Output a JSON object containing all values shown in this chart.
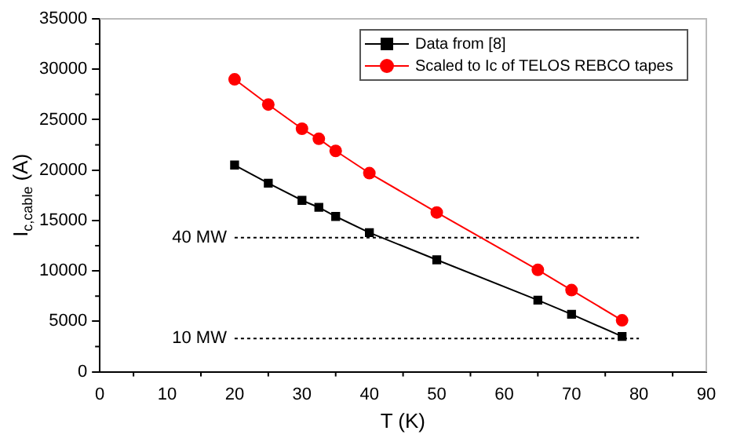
{
  "chart_data": {
    "type": "line",
    "xlabel": "T (K)",
    "ylabel": "I$_{c,cable}$ (A)",
    "xlim": [
      0,
      90
    ],
    "xticks": [
      0,
      10,
      20,
      30,
      40,
      50,
      60,
      70,
      80,
      90
    ],
    "ylim": [
      0,
      35000
    ],
    "yticks": [
      0,
      5000,
      10000,
      15000,
      20000,
      25000,
      30000,
      35000
    ],
    "grid": false,
    "legend": "top right",
    "series": [
      {
        "name": "Data from [8]",
        "color": "#000000",
        "marker": "square",
        "x": [
          20,
          25,
          30,
          32.5,
          35,
          40,
          50,
          65,
          70,
          77.5
        ],
        "values": [
          20500,
          18700,
          17000,
          16300,
          15400,
          13800,
          11100,
          7100,
          5700,
          3500
        ]
      },
      {
        "name": "Scaled to Ic of TELOS REBCO tapes",
        "color": "#ff0000",
        "marker": "circle",
        "x": [
          20,
          25,
          30,
          32.5,
          35,
          40,
          50,
          65,
          70,
          77.5
        ],
        "values": [
          29000,
          26500,
          24100,
          23100,
          21900,
          19700,
          15800,
          10100,
          8100,
          5100
        ]
      },
      {
        "color": "#000000",
        "marker": "none",
        "line_style": "dotted",
        "x": [
          20,
          80
        ],
        "values": [
          13300,
          13300
        ]
      },
      {
        "color": "#000000",
        "marker": "none",
        "line_style": "dotted",
        "x": [
          20,
          80
        ],
        "values": [
          3300,
          3300
        ]
      }
    ],
    "annotations": [
      {
        "text": "40 MW",
        "x": 20,
        "y": 13300
      },
      {
        "text": "10 MW",
        "x": 20,
        "y": 3300
      }
    ]
  }
}
